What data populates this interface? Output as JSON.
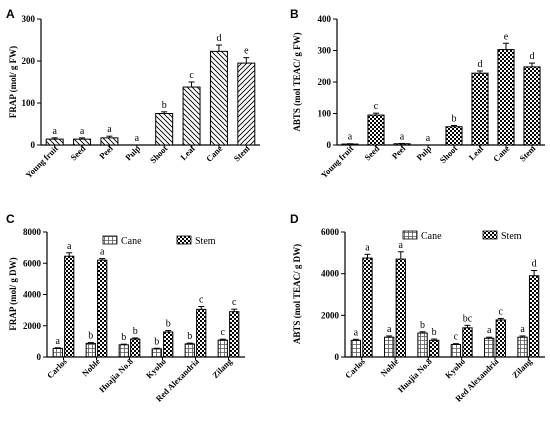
{
  "chart_data": [
    {
      "panel": "A",
      "type": "bar",
      "ylabel": "FRAP (mol/ g FW)",
      "ylim": [
        0,
        300
      ],
      "yticks": [
        0,
        100,
        200,
        300
      ],
      "categories": [
        "Young fruit",
        "Seed",
        "Peel",
        "Pulp",
        "Shoot",
        "Leaf",
        "Cane",
        "Stem"
      ],
      "patterns": [
        "hatch-back",
        "hatch-back",
        "hatch-back",
        "hatch-back",
        "hatch-back",
        "hatch-back",
        "hatch-back",
        "hatch-fwd"
      ],
      "values": [
        14,
        14,
        17,
        0,
        75,
        138,
        223,
        195
      ],
      "errors": [
        3,
        3,
        4,
        0,
        4,
        12,
        15,
        13
      ],
      "letters": [
        "a",
        "a",
        "a",
        "a",
        "b",
        "c",
        "d",
        "e"
      ]
    },
    {
      "panel": "B",
      "type": "bar",
      "ylabel": "ABTS (mol TEAC/ g FW)",
      "ylim": [
        0,
        400
      ],
      "yticks": [
        0,
        100,
        200,
        300,
        400
      ],
      "categories": [
        "Young fruit",
        "Seed",
        "Peel",
        "Pulp",
        "Shoot",
        "Leaf",
        "Cane",
        "Stem"
      ],
      "patterns": [
        "checker",
        "checker",
        "checker",
        "checker",
        "checker",
        "checker",
        "checker",
        "checker"
      ],
      "values": [
        3,
        95,
        4,
        0,
        58,
        228,
        303,
        248
      ],
      "errors": [
        1,
        6,
        1,
        0,
        4,
        7,
        20,
        12
      ],
      "letters": [
        "a",
        "c",
        "a",
        "a",
        "b",
        "d",
        "e",
        "d"
      ]
    },
    {
      "panel": "C",
      "type": "bar",
      "ylabel": "FRAP (mol/ g DW)",
      "ylim": [
        0,
        8000
      ],
      "yticks": [
        0,
        2000,
        4000,
        6000,
        8000
      ],
      "categories": [
        "Carlos",
        "Noble",
        "Huajia No.8",
        "Kyoho",
        "Red Alexandria",
        "Zilang"
      ],
      "series": [
        {
          "name": "Cane",
          "pattern": "grid",
          "values": [
            550,
            870,
            780,
            520,
            840,
            1080
          ],
          "errors": [
            40,
            50,
            40,
            40,
            50,
            60
          ],
          "letters": [
            "a",
            "b",
            "b",
            "b",
            "b",
            "c"
          ]
        },
        {
          "name": "Stem",
          "pattern": "checker",
          "values": [
            6450,
            6200,
            1150,
            1600,
            3050,
            2900
          ],
          "errors": [
            220,
            100,
            70,
            90,
            180,
            160
          ],
          "letters": [
            "a",
            "a",
            "b",
            "b",
            "c",
            "c"
          ]
        }
      ]
    },
    {
      "panel": "D",
      "type": "bar",
      "ylabel": "ABTS (mol TEAC/ g DW)",
      "ylim": [
        0,
        6000
      ],
      "yticks": [
        0,
        2000,
        4000,
        6000
      ],
      "categories": [
        "Carlos",
        "Noble",
        "Huajia No.8",
        "Kyoho",
        "Red Alexandria",
        "Zilang"
      ],
      "series": [
        {
          "name": "Cane",
          "pattern": "grid",
          "values": [
            800,
            950,
            1150,
            600,
            900,
            950
          ],
          "errors": [
            50,
            60,
            60,
            40,
            50,
            60
          ],
          "letters": [
            "a",
            "a",
            "b",
            "c",
            "a",
            "a"
          ]
        },
        {
          "name": "Stem",
          "pattern": "checker",
          "values": [
            4750,
            4700,
            800,
            1400,
            1780,
            3900
          ],
          "errors": [
            180,
            350,
            60,
            120,
            70,
            250
          ],
          "letters": [
            "a",
            "a",
            "b",
            "bc",
            "c",
            "d"
          ]
        }
      ]
    }
  ]
}
